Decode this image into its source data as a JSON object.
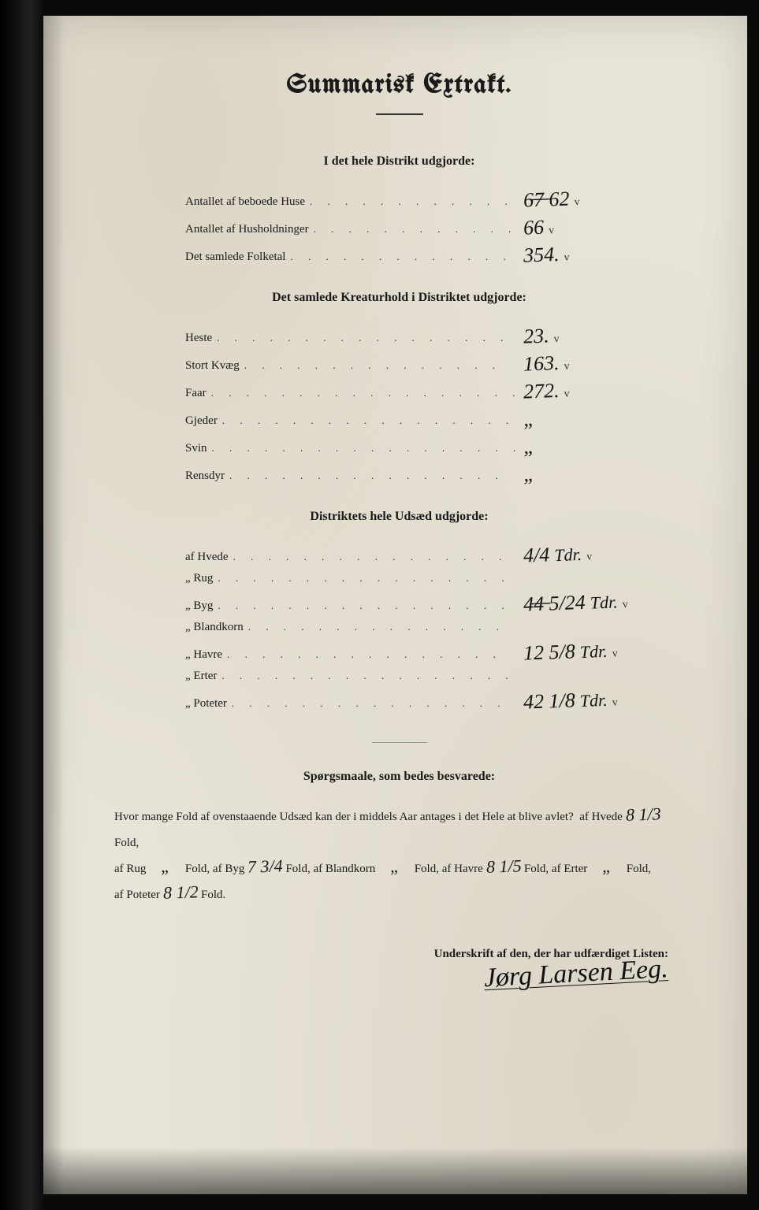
{
  "title": "Summarisk Extrakt.",
  "section1": {
    "heading": "I det hele Distrikt udgjorde:",
    "rows": [
      {
        "label": "Antallet af beboede Huse",
        "value": "6̶7̶ 62",
        "check": "v"
      },
      {
        "label": "Antallet af Husholdninger",
        "value": "66",
        "check": "v"
      },
      {
        "label": "Det samlede Folketal",
        "value": "354.",
        "check": "v"
      }
    ]
  },
  "section2": {
    "heading": "Det samlede Kreaturhold i Distriktet udgjorde:",
    "rows": [
      {
        "label": "Heste",
        "value": "23.",
        "check": "v"
      },
      {
        "label": "Stort Kvæg",
        "value": "163.",
        "check": "v"
      },
      {
        "label": "Faar",
        "value": "272.",
        "check": "v"
      },
      {
        "label": "Gjeder",
        "value": "„",
        "check": ""
      },
      {
        "label": "Svin",
        "value": "„",
        "check": ""
      },
      {
        "label": "Rensdyr",
        "value": "„",
        "check": ""
      }
    ]
  },
  "section3": {
    "heading": "Distriktets hele Udsæd udgjorde:",
    "rows": [
      {
        "label": "af Hvede",
        "value": "4/4",
        "unit": "Tdr.",
        "check": "v"
      },
      {
        "label": "„ Rug",
        "value": "",
        "unit": "",
        "check": ""
      },
      {
        "label": "„ Byg",
        "value": "4̶4̶ 5/24",
        "unit": "Tdr.",
        "check": "v"
      },
      {
        "label": "„ Blandkorn",
        "value": "",
        "unit": "",
        "check": ""
      },
      {
        "label": "„ Havre",
        "value": "12 5/8",
        "unit": "Tdr.",
        "check": "v"
      },
      {
        "label": "„ Erter",
        "value": "",
        "unit": "",
        "check": ""
      },
      {
        "label": "„ Poteter",
        "value": "42 1/8",
        "unit": "Tdr.",
        "check": "v"
      }
    ]
  },
  "questions": {
    "heading": "Spørgsmaale, som bedes besvarede:",
    "lead": "Hvor mange Fold af ovenstaaende Udsæd kan der i middels Aar antages i det Hele at blive avlet?",
    "items": {
      "hvede": "8 1/3",
      "rug": "„",
      "byg": "7 3/4",
      "blandkorn": "„",
      "havre": "8 1/5",
      "erter": "„",
      "poteter": "8 1/2"
    },
    "labels": {
      "hvede": "af Hvede",
      "rug": "af Rug",
      "byg": "Fold, af Byg",
      "blandkorn": "Fold, af Blandkorn",
      "havre": "Fold, af Havre",
      "erter": "Fold, af Erter",
      "poteter": "af Poteter",
      "tail": "Fold."
    }
  },
  "signature": {
    "label": "Underskrift af den, der har udfærdiget Listen:",
    "name": "Jørg Larsen Eeg."
  },
  "colors": {
    "paper": "#e8e4d8",
    "ink_print": "#1a1a1a",
    "ink_hand": "#141414",
    "frame": "#0a0a0a"
  },
  "typography": {
    "title_fontsize": 34,
    "heading_fontsize": 16,
    "body_fontsize": 15,
    "handwriting_fontsize": 26,
    "signature_fontsize": 34
  }
}
